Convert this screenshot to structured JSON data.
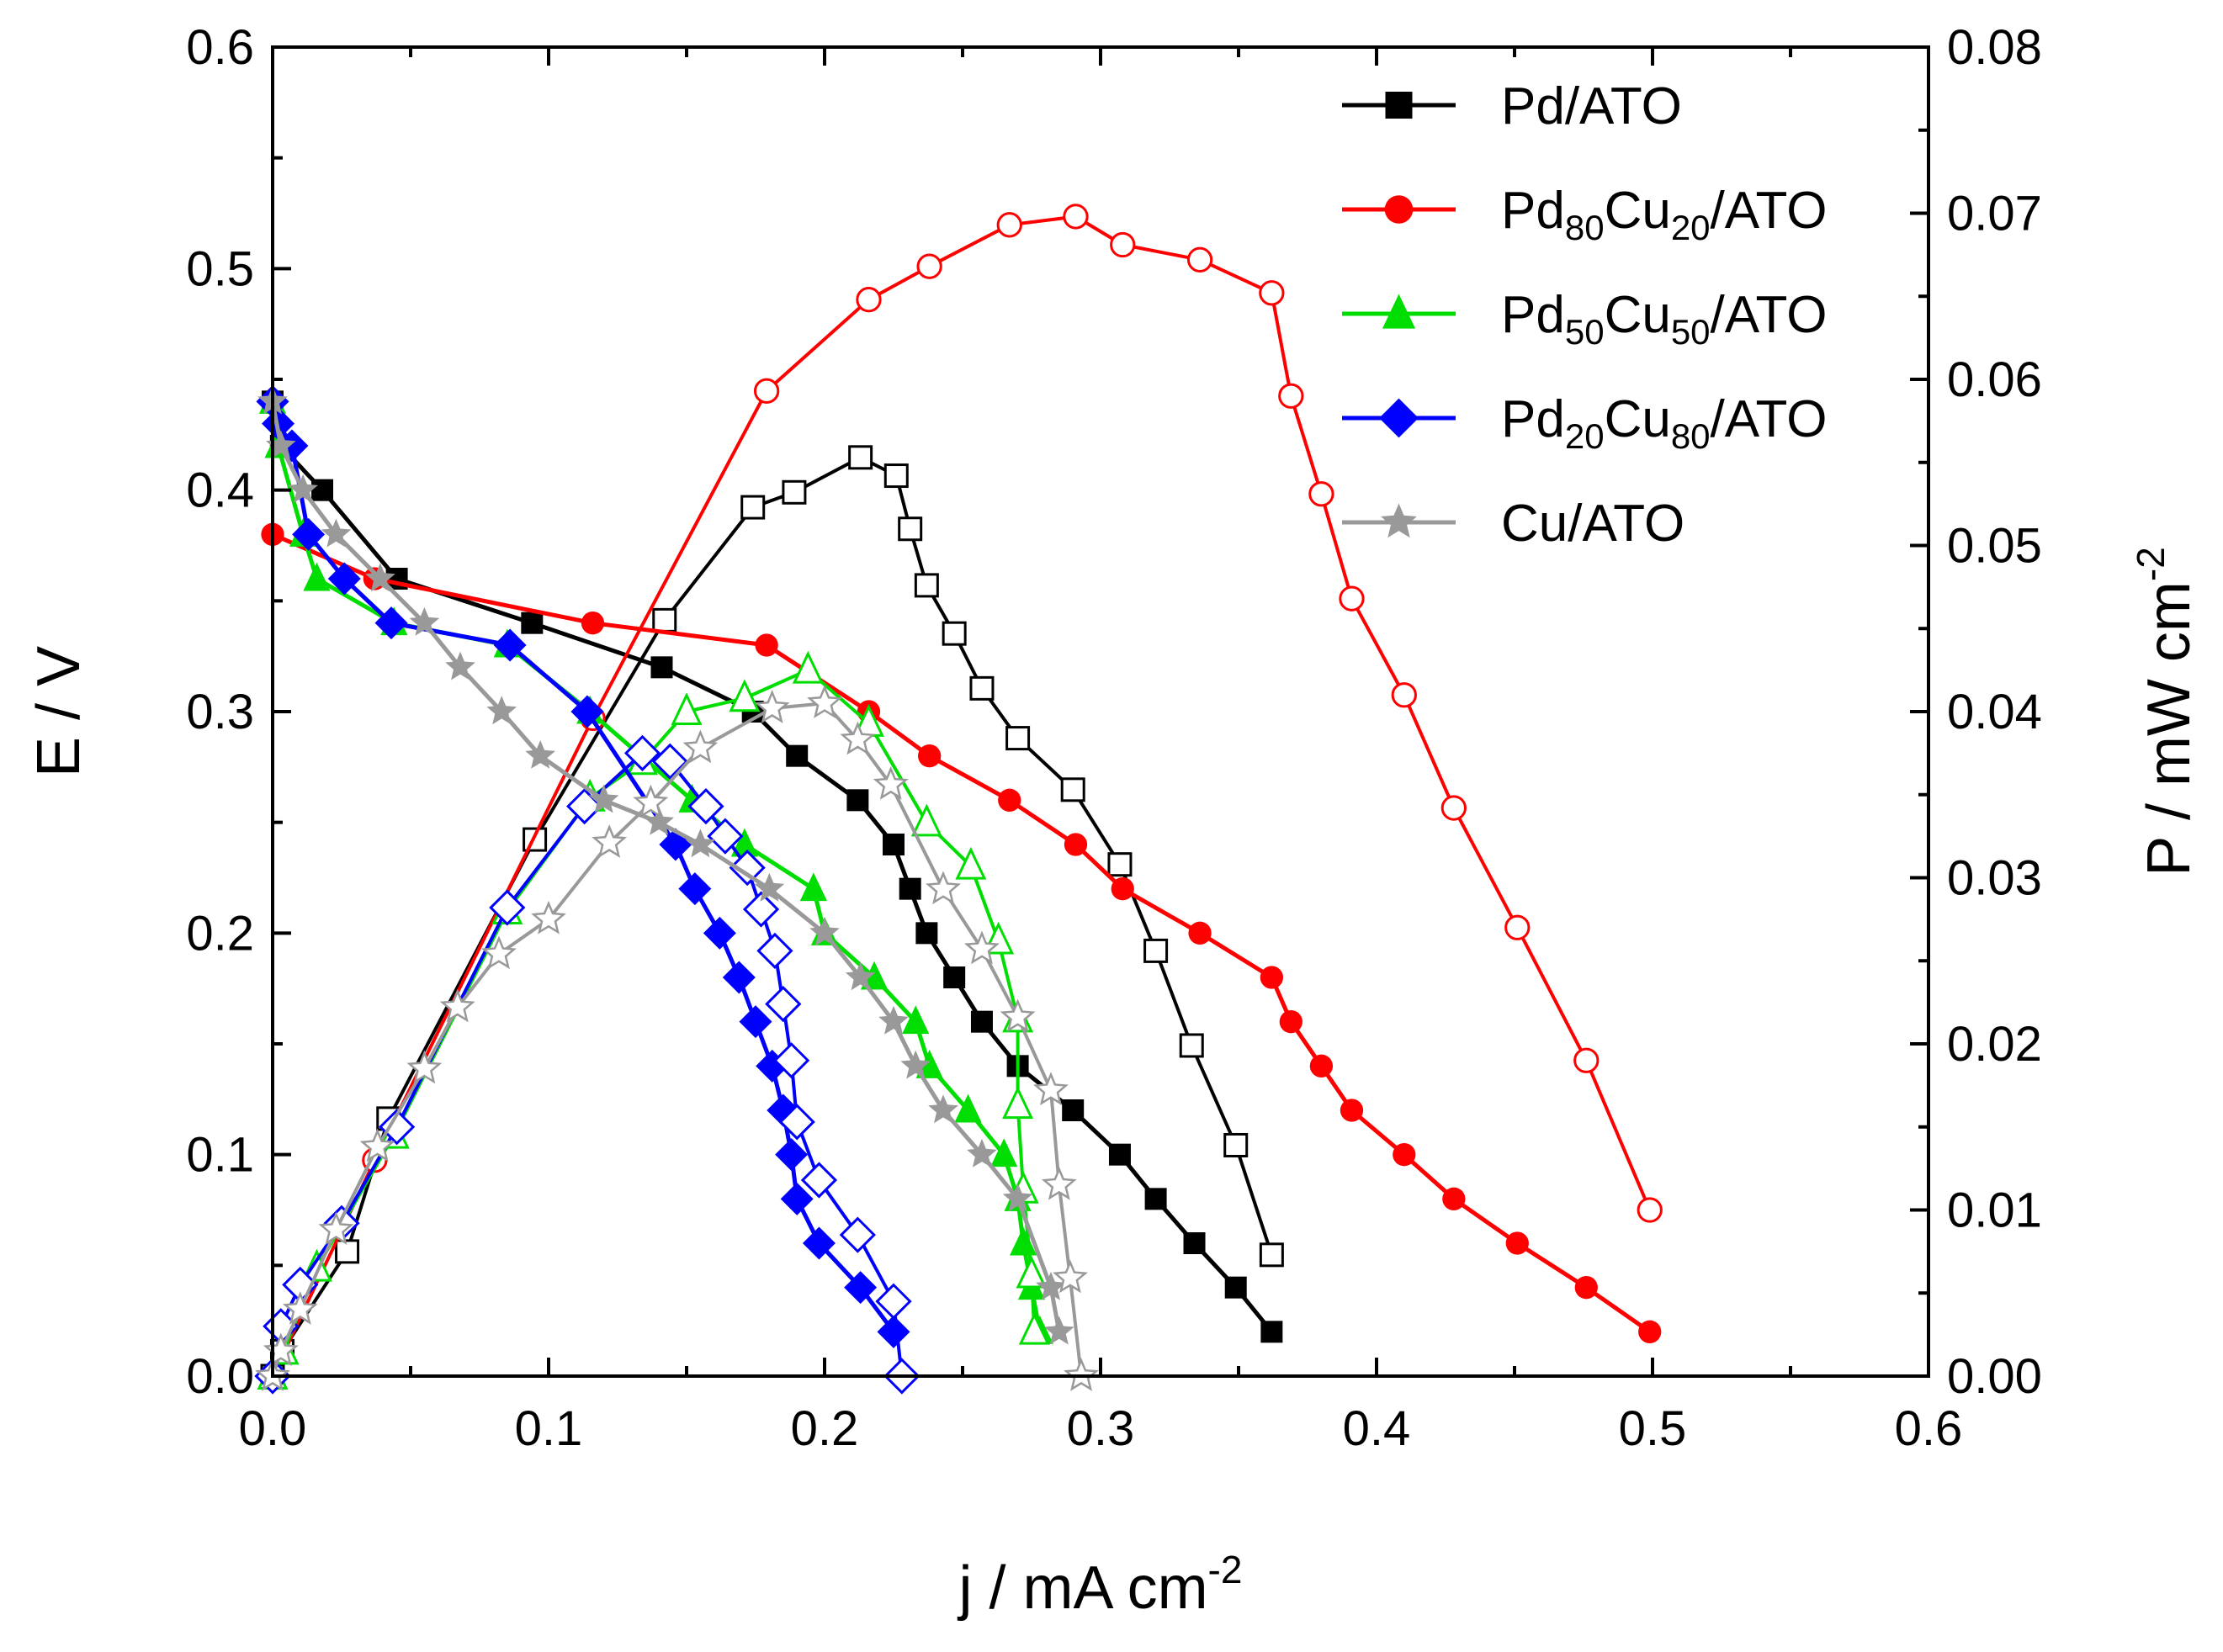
{
  "chart_data": {
    "type": "line",
    "xlabel": "j / mA cm",
    "xlabel_sup": "-2",
    "ylabel_left": "E / V",
    "ylabel_right": "P / mW cm",
    "ylabel_right_sup": "-2",
    "xlim": [
      0,
      0.6
    ],
    "ylim_left": [
      0,
      0.6
    ],
    "ylim_right": [
      0,
      0.08
    ],
    "x_ticks": [
      "0.0",
      "0.1",
      "0.2",
      "0.3",
      "0.4",
      "0.5",
      "0.6"
    ],
    "y_left_ticks": [
      "0.0",
      "0.1",
      "0.2",
      "0.3",
      "0.4",
      "0.5",
      "0.6"
    ],
    "y_right_ticks": [
      "0.00",
      "0.01",
      "0.02",
      "0.03",
      "0.04",
      "0.05",
      "0.06",
      "0.07",
      "0.08"
    ],
    "legend_position": "top-right",
    "series": [
      {
        "name": "Pd/ATO",
        "legend_parts": [
          {
            "t": "Pd/ATO"
          }
        ],
        "color": "#000000",
        "marker": "square",
        "polarization": {
          "x": [
            0,
            0.003,
            0.018,
            0.045,
            0.094,
            0.141,
            0.174,
            0.19,
            0.212,
            0.225,
            0.231,
            0.237,
            0.247,
            0.257,
            0.27,
            0.29,
            0.307,
            0.32,
            0.334,
            0.349,
            0.362
          ],
          "y": [
            0.44,
            0.42,
            0.4,
            0.36,
            0.34,
            0.32,
            0.3,
            0.28,
            0.26,
            0.24,
            0.22,
            0.2,
            0.18,
            0.16,
            0.14,
            0.12,
            0.1,
            0.08,
            0.06,
            0.04,
            0.02
          ]
        },
        "power": {
          "x": [
            0,
            0.0035,
            0.027,
            0.042,
            0.095,
            0.142,
            0.174,
            0.189,
            0.213,
            0.226,
            0.231,
            0.237,
            0.247,
            0.257,
            0.27,
            0.29,
            0.307,
            0.32,
            0.333,
            0.349,
            0.362
          ],
          "y": [
            0,
            0.0015,
            0.0075,
            0.0155,
            0.0323,
            0.0455,
            0.0523,
            0.0532,
            0.0553,
            0.0542,
            0.051,
            0.0476,
            0.0447,
            0.0414,
            0.0384,
            0.0353,
            0.0308,
            0.0256,
            0.0199,
            0.0139,
            0.0073
          ]
        }
      },
      {
        "name": "Pd80Cu20/ATO",
        "legend_parts": [
          {
            "t": "Pd"
          },
          {
            "t": "80",
            "sub": true
          },
          {
            "t": "Cu"
          },
          {
            "t": "20",
            "sub": true
          },
          {
            "t": "/ATO"
          }
        ],
        "color": "#ff0000",
        "marker": "circle",
        "polarization": {
          "x": [
            0,
            0.037,
            0.116,
            0.179,
            0.216,
            0.238,
            0.267,
            0.291,
            0.308,
            0.336,
            0.362,
            0.369,
            0.38,
            0.391,
            0.41,
            0.428,
            0.451,
            0.476,
            0.499
          ],
          "y": [
            0.38,
            0.36,
            0.34,
            0.33,
            0.3,
            0.28,
            0.26,
            0.24,
            0.22,
            0.2,
            0.18,
            0.16,
            0.14,
            0.12,
            0.1,
            0.08,
            0.06,
            0.04,
            0.02
          ]
        },
        "power": {
          "x": [
            0,
            0.037,
            0.116,
            0.179,
            0.216,
            0.238,
            0.267,
            0.291,
            0.308,
            0.336,
            0.362,
            0.369,
            0.38,
            0.391,
            0.41,
            0.428,
            0.451,
            0.476,
            0.499
          ],
          "y": [
            0,
            0.013,
            0.0396,
            0.0593,
            0.0648,
            0.0668,
            0.0693,
            0.0698,
            0.0681,
            0.0672,
            0.0652,
            0.059,
            0.0531,
            0.0468,
            0.041,
            0.0342,
            0.027,
            0.019,
            0.01
          ]
        }
      },
      {
        "name": "Pd50Cu50/ATO",
        "legend_parts": [
          {
            "t": "Pd"
          },
          {
            "t": "50",
            "sub": true
          },
          {
            "t": "Cu"
          },
          {
            "t": "50",
            "sub": true
          },
          {
            "t": "/ATO"
          }
        ],
        "color": "#00dd00",
        "marker": "triangle",
        "polarization": {
          "x": [
            0,
            0.002,
            0.011,
            0.016,
            0.044,
            0.085,
            0.115,
            0.152,
            0.171,
            0.196,
            0.2,
            0.218,
            0.233,
            0.238,
            0.252,
            0.265,
            0.27,
            0.272,
            0.275,
            0.278
          ],
          "y": [
            0.44,
            0.42,
            0.38,
            0.36,
            0.34,
            0.33,
            0.3,
            0.26,
            0.24,
            0.22,
            0.2,
            0.18,
            0.16,
            0.14,
            0.12,
            0.1,
            0.08,
            0.06,
            0.04,
            0.02
          ]
        },
        "power": {
          "x": [
            0,
            0.004,
            0.016,
            0.044,
            0.085,
            0.115,
            0.134,
            0.15,
            0.171,
            0.194,
            0.216,
            0.237,
            0.253,
            0.263,
            0.27,
            0.27,
            0.272,
            0.275,
            0.276
          ],
          "y": [
            0,
            0.0015,
            0.0065,
            0.0145,
            0.028,
            0.0348,
            0.037,
            0.04,
            0.0408,
            0.0425,
            0.0393,
            0.0333,
            0.0307,
            0.0262,
            0.0215,
            0.0163,
            0.0112,
            0.0061,
            0.0027
          ]
        }
      },
      {
        "name": "Pd20Cu80/ATO",
        "legend_parts": [
          {
            "t": "Pd"
          },
          {
            "t": "20",
            "sub": true
          },
          {
            "t": "Cu"
          },
          {
            "t": "80",
            "sub": true
          },
          {
            "t": "/ATO"
          }
        ],
        "color": "#0000ff",
        "marker": "diamond",
        "polarization": {
          "x": [
            0,
            0.002,
            0.007,
            0.013,
            0.026,
            0.043,
            0.086,
            0.114,
            0.146,
            0.153,
            0.162,
            0.169,
            0.175,
            0.181,
            0.185,
            0.188,
            0.19,
            0.198,
            0.213,
            0.225
          ],
          "y": [
            0.44,
            0.43,
            0.42,
            0.38,
            0.36,
            0.34,
            0.33,
            0.3,
            0.24,
            0.22,
            0.2,
            0.18,
            0.16,
            0.14,
            0.12,
            0.1,
            0.08,
            0.06,
            0.04,
            0.02
          ]
        },
        "power": {
          "x": [
            0,
            0.003,
            0.01,
            0.025,
            0.045,
            0.085,
            0.113,
            0.134,
            0.144,
            0.157,
            0.164,
            0.172,
            0.177,
            0.182,
            0.185,
            0.188,
            0.19,
            0.198,
            0.212,
            0.225,
            0.228
          ],
          "y": [
            0,
            0.003,
            0.0055,
            0.0092,
            0.015,
            0.0282,
            0.0343,
            0.0375,
            0.037,
            0.0343,
            0.0325,
            0.0306,
            0.0281,
            0.0256,
            0.0224,
            0.019,
            0.0153,
            0.0118,
            0.0085,
            0.0045,
            0
          ]
        }
      },
      {
        "name": "Cu/ATO",
        "legend_parts": [
          {
            "t": "Cu/ATO"
          }
        ],
        "color": "#999999",
        "marker": "star",
        "polarization": {
          "x": [
            0,
            0.003,
            0.011,
            0.023,
            0.039,
            0.055,
            0.068,
            0.083,
            0.097,
            0.12,
            0.14,
            0.155,
            0.18,
            0.2,
            0.213,
            0.225,
            0.233,
            0.243,
            0.257,
            0.27,
            0.282,
            0.285
          ],
          "y": [
            0.44,
            0.42,
            0.4,
            0.38,
            0.36,
            0.34,
            0.32,
            0.3,
            0.28,
            0.26,
            0.25,
            0.24,
            0.22,
            0.2,
            0.18,
            0.16,
            0.14,
            0.12,
            0.1,
            0.08,
            0.04,
            0.02
          ]
        },
        "power": {
          "x": [
            0,
            0.003,
            0.01,
            0.023,
            0.038,
            0.055,
            0.067,
            0.082,
            0.1,
            0.122,
            0.137,
            0.155,
            0.181,
            0.2,
            0.212,
            0.224,
            0.243,
            0.257,
            0.27,
            0.282,
            0.285,
            0.289,
            0.293
          ],
          "y": [
            0,
            0.0015,
            0.004,
            0.0088,
            0.0138,
            0.0185,
            0.0222,
            0.0254,
            0.0275,
            0.0321,
            0.0345,
            0.0378,
            0.0402,
            0.0405,
            0.0383,
            0.0356,
            0.0293,
            0.0257,
            0.0216,
            0.0172,
            0.0115,
            0.0059,
            0
          ]
        }
      }
    ]
  }
}
